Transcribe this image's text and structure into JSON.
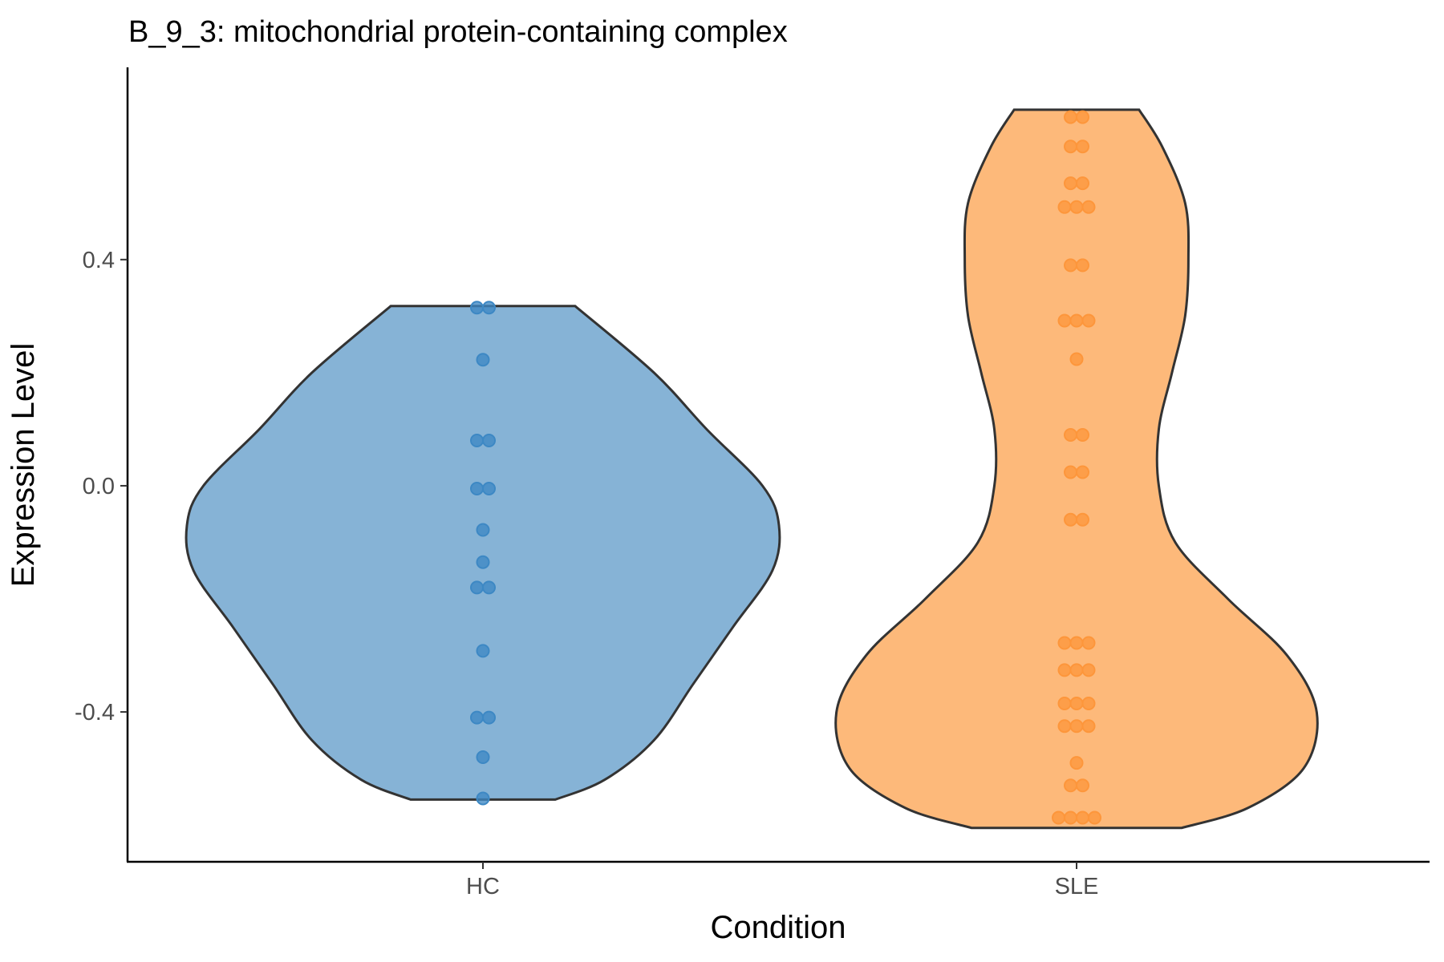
{
  "chart_data": {
    "type": "violin",
    "title": "B_9_3: mitochondrial protein-containing complex",
    "xlabel": "Condition",
    "ylabel": "Expression Level",
    "ylim": [
      -0.665,
      0.74
    ],
    "yticks": [
      -0.4,
      0.0,
      0.4
    ],
    "ytick_labels": [
      "-0.4",
      "0.0",
      "0.4"
    ],
    "categories": [
      "HC",
      "SLE"
    ],
    "grid": false,
    "legend": "none",
    "series": [
      {
        "name": "HC",
        "color": "#86b3d6",
        "dot_color": "#3d88c4",
        "violin_min": -0.555,
        "violin_max": 0.318,
        "density_profile": [
          [
            -0.555,
            0.22
          ],
          [
            -0.52,
            0.37
          ],
          [
            -0.45,
            0.52
          ],
          [
            -0.35,
            0.64
          ],
          [
            -0.25,
            0.76
          ],
          [
            -0.15,
            0.88
          ],
          [
            -0.07,
            0.9
          ],
          [
            0.0,
            0.85
          ],
          [
            0.1,
            0.68
          ],
          [
            0.2,
            0.52
          ],
          [
            0.318,
            0.28
          ]
        ],
        "points": [
          [
            0.315,
            2
          ],
          [
            0.223,
            1
          ],
          [
            0.08,
            2
          ],
          [
            -0.005,
            2
          ],
          [
            -0.078,
            1
          ],
          [
            -0.135,
            1
          ],
          [
            -0.18,
            2
          ],
          [
            -0.292,
            1
          ],
          [
            -0.41,
            2
          ],
          [
            -0.48,
            1
          ],
          [
            -0.553,
            1
          ]
        ]
      },
      {
        "name": "SLE",
        "color": "#fdb97a",
        "dot_color": "#fd963b",
        "violin_min": -0.605,
        "violin_max": 0.665,
        "density_profile": [
          [
            -0.605,
            0.32
          ],
          [
            -0.57,
            0.52
          ],
          [
            -0.5,
            0.69
          ],
          [
            -0.4,
            0.73
          ],
          [
            -0.3,
            0.64
          ],
          [
            -0.2,
            0.46
          ],
          [
            -0.1,
            0.3
          ],
          [
            0.0,
            0.25
          ],
          [
            0.1,
            0.25
          ],
          [
            0.2,
            0.29
          ],
          [
            0.3,
            0.33
          ],
          [
            0.4,
            0.34
          ],
          [
            0.5,
            0.33
          ],
          [
            0.6,
            0.26
          ],
          [
            0.665,
            0.19
          ]
        ],
        "points": [
          [
            0.652,
            2
          ],
          [
            0.6,
            2
          ],
          [
            0.535,
            2
          ],
          [
            0.493,
            3
          ],
          [
            0.39,
            2
          ],
          [
            0.292,
            3
          ],
          [
            0.224,
            1
          ],
          [
            0.09,
            2
          ],
          [
            0.024,
            2
          ],
          [
            -0.06,
            2
          ],
          [
            -0.278,
            3
          ],
          [
            -0.326,
            3
          ],
          [
            -0.385,
            3
          ],
          [
            -0.425,
            3
          ],
          [
            -0.49,
            1
          ],
          [
            -0.53,
            2
          ],
          [
            -0.587,
            4
          ]
        ]
      }
    ]
  }
}
